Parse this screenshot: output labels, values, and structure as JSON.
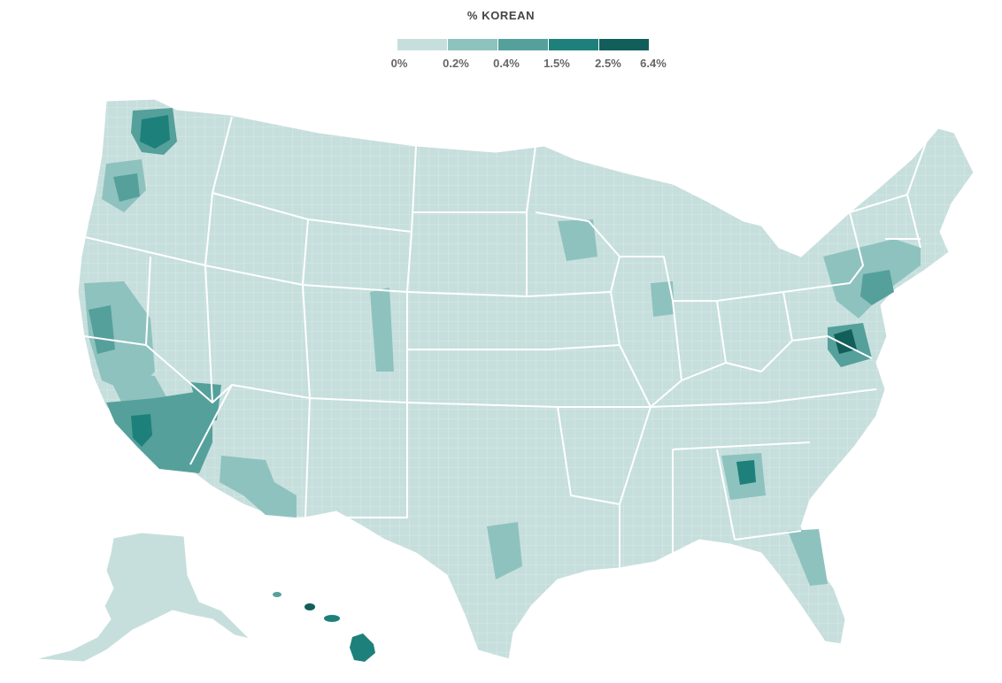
{
  "legend": {
    "title": "% KOREAN",
    "bins": [
      {
        "label": "0%",
        "color": "#c6dfdd"
      },
      {
        "label": "0.2%",
        "color": "#8ec2be"
      },
      {
        "label": "0.4%",
        "color": "#55a09b"
      },
      {
        "label": "1.5%",
        "color": "#1e807b"
      },
      {
        "label": "2.5%",
        "color": "#125e5a"
      }
    ],
    "end_label": "6.4%"
  },
  "colors": {
    "base": "#c6dfdd",
    "low": "#8ec2be",
    "mid": "#55a09b",
    "high": "#1e807b",
    "top": "#125e5a",
    "state_border": "#ffffff"
  }
}
